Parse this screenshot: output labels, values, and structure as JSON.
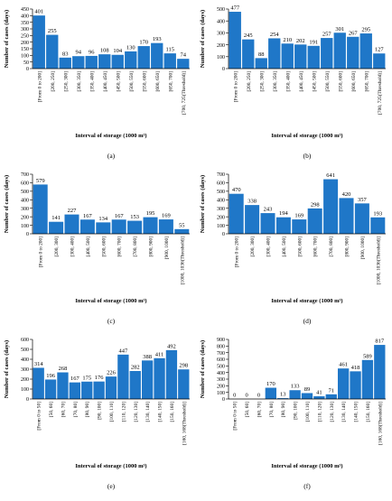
{
  "figure": {
    "bar_color": "#1f77c8",
    "axis_color": "#000000",
    "grid_color": "#d9d9d9"
  },
  "chart_data": [
    {
      "type": "bar",
      "label": "(a)",
      "ylabel": "Number of cases (days)",
      "xlabel": "Interval of storage (1000 m³)",
      "ylim": [
        0,
        450
      ],
      "yticks": [
        0,
        50,
        100,
        150,
        200,
        250,
        300,
        350,
        400,
        450
      ],
      "categories": [
        "[From 0 to 200]",
        "[200, 250]",
        "[250, 300]",
        "[300, 350]",
        "[350, 400]",
        "[400, 450]",
        "[450, 500]",
        "[500, 550]",
        "[550, 600]",
        "[600, 650]",
        "[650, 700]",
        "[700, 725(Threshold)]"
      ],
      "values": [
        401,
        255,
        83,
        94,
        96,
        108,
        104,
        130,
        170,
        193,
        115,
        74
      ],
      "grid": false
    },
    {
      "type": "bar",
      "label": "(b)",
      "ylabel": "Number of cases (days)",
      "xlabel": "Interval of storage (1000 m³)",
      "ylim": [
        0,
        500
      ],
      "yticks": [
        0,
        100,
        200,
        300,
        400,
        500
      ],
      "categories": [
        "[From 0 to 200]",
        "[200, 250]",
        "[250, 300]",
        "[300, 350]",
        "[350, 400]",
        "[400, 450]",
        "[450, 500]",
        "[500, 550]",
        "[550, 600]",
        "[600, 650]",
        "[650, 700]",
        "[700, 725(Threshold)]"
      ],
      "values": [
        477,
        245,
        88,
        254,
        210,
        202,
        191,
        257,
        301,
        267,
        295,
        127
      ],
      "grid": false
    },
    {
      "type": "bar",
      "label": "(c)",
      "ylabel": "Number of cases (days)",
      "xlabel": "Interval of storage (1000 m³)",
      "ylim": [
        0,
        700
      ],
      "yticks": [
        0,
        100,
        200,
        300,
        400,
        500,
        600,
        700
      ],
      "categories": [
        "[From 0 to 200]",
        "[200, 300]",
        "[300, 400]",
        "[400, 500]",
        "[500, 600]",
        "[600, 700]",
        "[700, 800]",
        "[800, 900]",
        "[900, 1000]",
        "[1000, 1036(Threshold)]"
      ],
      "values": [
        579,
        141,
        227,
        167,
        134,
        167,
        153,
        195,
        169,
        55
      ],
      "grid": false
    },
    {
      "type": "bar",
      "label": "(d)",
      "ylabel": "Number of cases (days)",
      "xlabel": "Interval of storage (1000 m³)",
      "ylim": [
        0,
        700
      ],
      "yticks": [
        0,
        100,
        200,
        300,
        400,
        500,
        600,
        700
      ],
      "categories": [
        "[From 0 to 200]",
        "[200, 300]",
        "[300, 400]",
        "[400, 500]",
        "[500, 600]",
        "[600, 700]",
        "[700, 800]",
        "[800, 900]",
        "[900, 1000]",
        "[1000, 1036(Threshold)]"
      ],
      "values": [
        470,
        338,
        243,
        194,
        169,
        298,
        641,
        420,
        357,
        193
      ],
      "grid": false
    },
    {
      "type": "bar",
      "label": "(e)",
      "ylabel": "Number of cases (days)",
      "xlabel": "Interval of storage (1000 m³)",
      "ylim": [
        0,
        600
      ],
      "yticks": [
        0,
        100,
        200,
        300,
        400,
        500,
        600
      ],
      "categories": [
        "[From 0 to 50]",
        "[50, 60]",
        "[60, 70]",
        "[70, 80]",
        "[80, 90]",
        "[90, 100]",
        "[100, 110]",
        "[110, 120]",
        "[120, 130]",
        "[130, 140]",
        "[140, 150]",
        "[150, 160]",
        "[160, 168(Threshold)]"
      ],
      "values": [
        314,
        196,
        268,
        167,
        175,
        176,
        226,
        447,
        282,
        388,
        411,
        492,
        298
      ],
      "grid": false
    },
    {
      "type": "bar",
      "label": "(f)",
      "ylabel": "Number of cases (days)",
      "xlabel": "Interval of storage (1000 m³)",
      "ylim": [
        0,
        900
      ],
      "yticks": [
        0,
        100,
        200,
        300,
        400,
        500,
        600,
        700,
        800,
        900
      ],
      "categories": [
        "[From 0 to 50]",
        "[50, 60]",
        "[60, 70]",
        "[70, 80]",
        "[80, 90]",
        "[90, 100]",
        "[100, 110]",
        "[110, 120]",
        "[120, 130]",
        "[130, 140]",
        "[140, 150]",
        "[150, 160]",
        "[160, 168(Threshold)]"
      ],
      "values": [
        0,
        0,
        0,
        170,
        13,
        133,
        89,
        41,
        71,
        461,
        418,
        589,
        817
      ],
      "grid": false
    }
  ]
}
